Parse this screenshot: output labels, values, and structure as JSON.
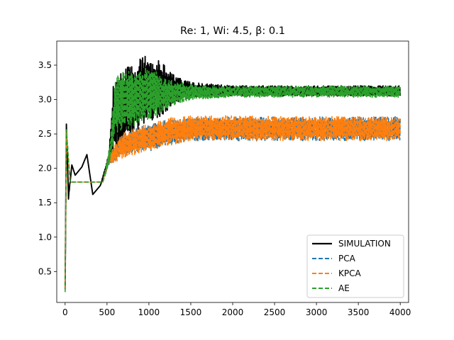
{
  "chart_data": {
    "type": "line",
    "title": "Re: 1, Wi: 4.5, β: 0.1",
    "xlabel": "",
    "ylabel": "",
    "xlim": [
      -100,
      4100
    ],
    "ylim": [
      0.05,
      3.85
    ],
    "x_ticks": [
      0,
      500,
      1000,
      1500,
      2000,
      2500,
      3000,
      3500,
      4000
    ],
    "y_ticks": [
      0.5,
      1.0,
      1.5,
      2.0,
      2.5,
      3.0,
      3.5
    ],
    "x_tick_labels": [
      "0",
      "500",
      "1000",
      "1500",
      "2000",
      "2500",
      "3000",
      "3500",
      "4000"
    ],
    "y_tick_labels": [
      "0.5",
      "1.0",
      "1.5",
      "2.0",
      "2.5",
      "3.0",
      "3.5"
    ],
    "grid": false,
    "legend_position": "lower-right",
    "series": [
      {
        "name": "SIMULATION",
        "color": "#000000",
        "style": "solid",
        "envelope": [
          {
            "x": 0,
            "lo": 0.25,
            "hi": 0.25
          },
          {
            "x": 15,
            "lo": 2.6,
            "hi": 2.65
          },
          {
            "x": 40,
            "lo": 1.55,
            "hi": 1.6
          },
          {
            "x": 80,
            "lo": 2.05,
            "hi": 2.05
          },
          {
            "x": 120,
            "lo": 1.9,
            "hi": 1.9
          },
          {
            "x": 200,
            "lo": 2.02,
            "hi": 2.02
          },
          {
            "x": 260,
            "lo": 2.2,
            "hi": 2.2
          },
          {
            "x": 330,
            "lo": 1.62,
            "hi": 1.62
          },
          {
            "x": 420,
            "lo": 1.75,
            "hi": 1.75
          },
          {
            "x": 520,
            "lo": 2.1,
            "hi": 2.2
          },
          {
            "x": 580,
            "lo": 2.2,
            "hi": 3.3
          },
          {
            "x": 700,
            "lo": 2.3,
            "hi": 3.45
          },
          {
            "x": 850,
            "lo": 2.55,
            "hi": 3.55
          },
          {
            "x": 960,
            "lo": 2.65,
            "hi": 3.65
          },
          {
            "x": 1150,
            "lo": 2.75,
            "hi": 3.55
          },
          {
            "x": 1300,
            "lo": 2.95,
            "hi": 3.35
          },
          {
            "x": 1500,
            "lo": 3.03,
            "hi": 3.25
          },
          {
            "x": 2000,
            "lo": 3.05,
            "hi": 3.2
          },
          {
            "x": 4000,
            "lo": 3.05,
            "hi": 3.2
          }
        ]
      },
      {
        "name": "PCA",
        "color": "#1f77b4",
        "style": "dashed",
        "envelope": [
          {
            "x": 0,
            "lo": 0.25,
            "hi": 0.25
          },
          {
            "x": 15,
            "lo": 2.5,
            "hi": 2.55
          },
          {
            "x": 60,
            "lo": 1.8,
            "hi": 1.8
          },
          {
            "x": 450,
            "lo": 1.8,
            "hi": 1.8
          },
          {
            "x": 520,
            "lo": 2.05,
            "hi": 2.2
          },
          {
            "x": 700,
            "lo": 2.2,
            "hi": 2.5
          },
          {
            "x": 1000,
            "lo": 2.25,
            "hi": 2.65
          },
          {
            "x": 1300,
            "lo": 2.35,
            "hi": 2.72
          },
          {
            "x": 1500,
            "lo": 2.4,
            "hi": 2.75
          },
          {
            "x": 4000,
            "lo": 2.4,
            "hi": 2.75
          }
        ]
      },
      {
        "name": "KPCA",
        "color": "#ff7f0e",
        "style": "dashed",
        "envelope": [
          {
            "x": 0,
            "lo": 0.25,
            "hi": 0.25
          },
          {
            "x": 15,
            "lo": 2.5,
            "hi": 2.55
          },
          {
            "x": 60,
            "lo": 1.8,
            "hi": 1.8
          },
          {
            "x": 450,
            "lo": 1.8,
            "hi": 1.8
          },
          {
            "x": 520,
            "lo": 2.05,
            "hi": 2.2
          },
          {
            "x": 700,
            "lo": 2.15,
            "hi": 2.55
          },
          {
            "x": 1000,
            "lo": 2.25,
            "hi": 2.65
          },
          {
            "x": 1300,
            "lo": 2.35,
            "hi": 2.75
          },
          {
            "x": 1500,
            "lo": 2.4,
            "hi": 2.77
          },
          {
            "x": 4000,
            "lo": 2.4,
            "hi": 2.75
          }
        ]
      },
      {
        "name": "AE",
        "color": "#2ca02c",
        "style": "dashed",
        "envelope": [
          {
            "x": 0,
            "lo": 0.2,
            "hi": 0.2
          },
          {
            "x": 15,
            "lo": 2.55,
            "hi": 2.6
          },
          {
            "x": 60,
            "lo": 1.8,
            "hi": 1.8
          },
          {
            "x": 450,
            "lo": 1.8,
            "hi": 1.8
          },
          {
            "x": 540,
            "lo": 2.1,
            "hi": 2.4
          },
          {
            "x": 600,
            "lo": 2.5,
            "hi": 3.35
          },
          {
            "x": 800,
            "lo": 2.6,
            "hi": 3.45
          },
          {
            "x": 1000,
            "lo": 2.7,
            "hi": 3.5
          },
          {
            "x": 1200,
            "lo": 2.85,
            "hi": 3.3
          },
          {
            "x": 1500,
            "lo": 3.0,
            "hi": 3.22
          },
          {
            "x": 2000,
            "lo": 3.03,
            "hi": 3.2
          },
          {
            "x": 4000,
            "lo": 3.03,
            "hi": 3.2
          }
        ]
      }
    ]
  }
}
